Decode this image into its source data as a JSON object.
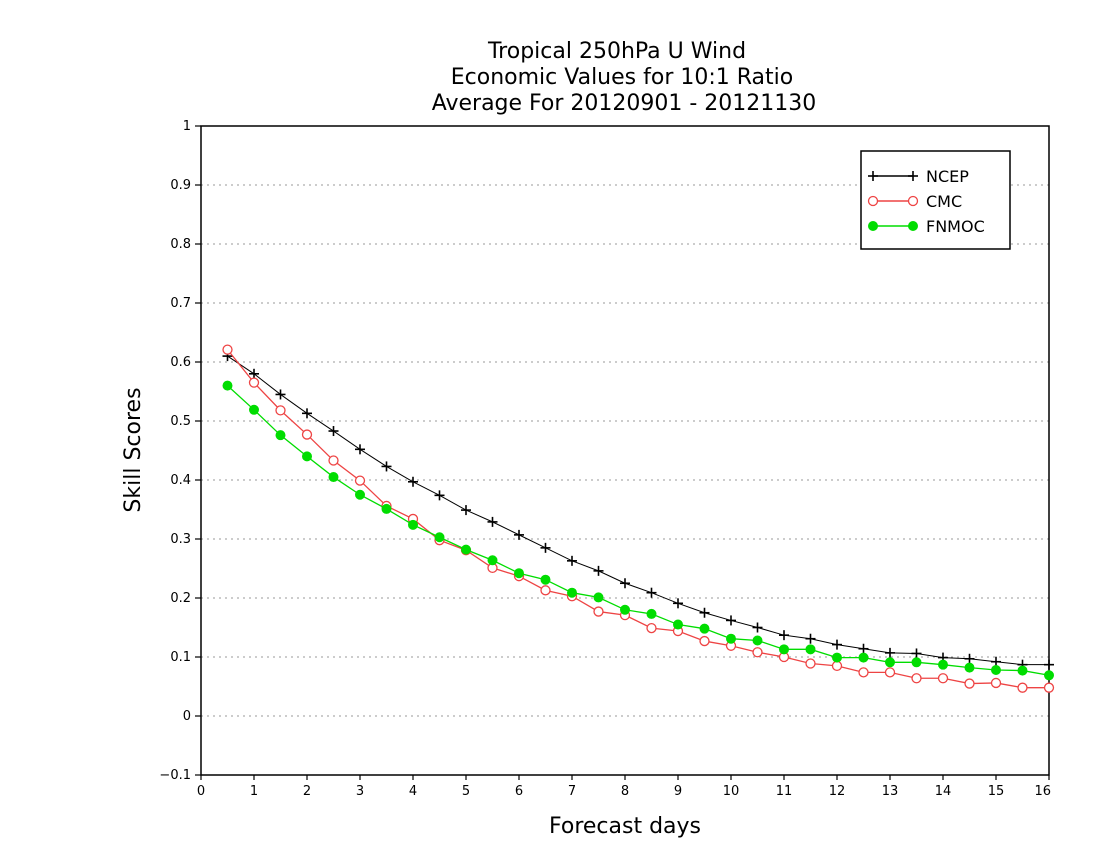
{
  "chart_data": {
    "type": "line",
    "title_lines": [
      "Tropical 250hPa U Wind",
      "Economic Values for 10:1 Ratio",
      "Average For 20120901 - 20121130"
    ],
    "xlabel": "Forecast days",
    "ylabel": "Skill Scores",
    "xlim": [
      0,
      16
    ],
    "ylim": [
      -0.1,
      1
    ],
    "x_ticks": [
      "0",
      "1",
      "2",
      "3",
      "4",
      "5",
      "6",
      "7",
      "8",
      "9",
      "10",
      "11",
      "12",
      "13",
      "14",
      "15",
      "16"
    ],
    "y_ticks": [
      "−0.1",
      "0",
      "0.1",
      "0.2",
      "0.3",
      "0.4",
      "0.5",
      "0.6",
      "0.7",
      "0.8",
      "0.9",
      "1"
    ],
    "grid": "horizontal dotted",
    "legend_position": "top-right",
    "x": [
      0.5,
      1,
      1.5,
      2,
      2.5,
      3,
      3.5,
      4,
      4.5,
      5,
      5.5,
      6,
      6.5,
      7,
      7.5,
      8,
      8.5,
      9,
      9.5,
      10,
      10.5,
      11,
      11.5,
      12,
      12.5,
      13,
      13.5,
      14,
      14.5,
      15,
      15.5,
      16
    ],
    "series": [
      {
        "name": "NCEP",
        "color": "#000000",
        "marker": "plus",
        "values": [
          0.61,
          0.58,
          0.545,
          0.513,
          0.483,
          0.452,
          0.423,
          0.397,
          0.374,
          0.349,
          0.329,
          0.307,
          0.285,
          0.263,
          0.246,
          0.225,
          0.209,
          0.191,
          0.175,
          0.162,
          0.15,
          0.137,
          0.131,
          0.121,
          0.114,
          0.107,
          0.106,
          0.099,
          0.097,
          0.092,
          0.087,
          0.087
        ]
      },
      {
        "name": "CMC",
        "color": "#ee4444",
        "marker": "open-circle",
        "values": [
          0.621,
          0.565,
          0.518,
          0.477,
          0.433,
          0.399,
          0.356,
          0.334,
          0.298,
          0.281,
          0.251,
          0.237,
          0.213,
          0.203,
          0.177,
          0.171,
          0.149,
          0.144,
          0.127,
          0.119,
          0.108,
          0.1,
          0.089,
          0.085,
          0.074,
          0.074,
          0.064,
          0.064,
          0.055,
          0.056,
          0.048,
          0.048
        ]
      },
      {
        "name": "FNMOC",
        "color": "#00dd00",
        "marker": "filled-circle",
        "values": [
          0.56,
          0.519,
          0.476,
          0.44,
          0.405,
          0.375,
          0.351,
          0.324,
          0.303,
          0.282,
          0.264,
          0.242,
          0.231,
          0.209,
          0.201,
          0.18,
          0.173,
          0.155,
          0.148,
          0.131,
          0.128,
          0.113,
          0.113,
          0.099,
          0.099,
          0.091,
          0.091,
          0.087,
          0.082,
          0.078,
          0.077,
          0.069
        ]
      }
    ]
  }
}
